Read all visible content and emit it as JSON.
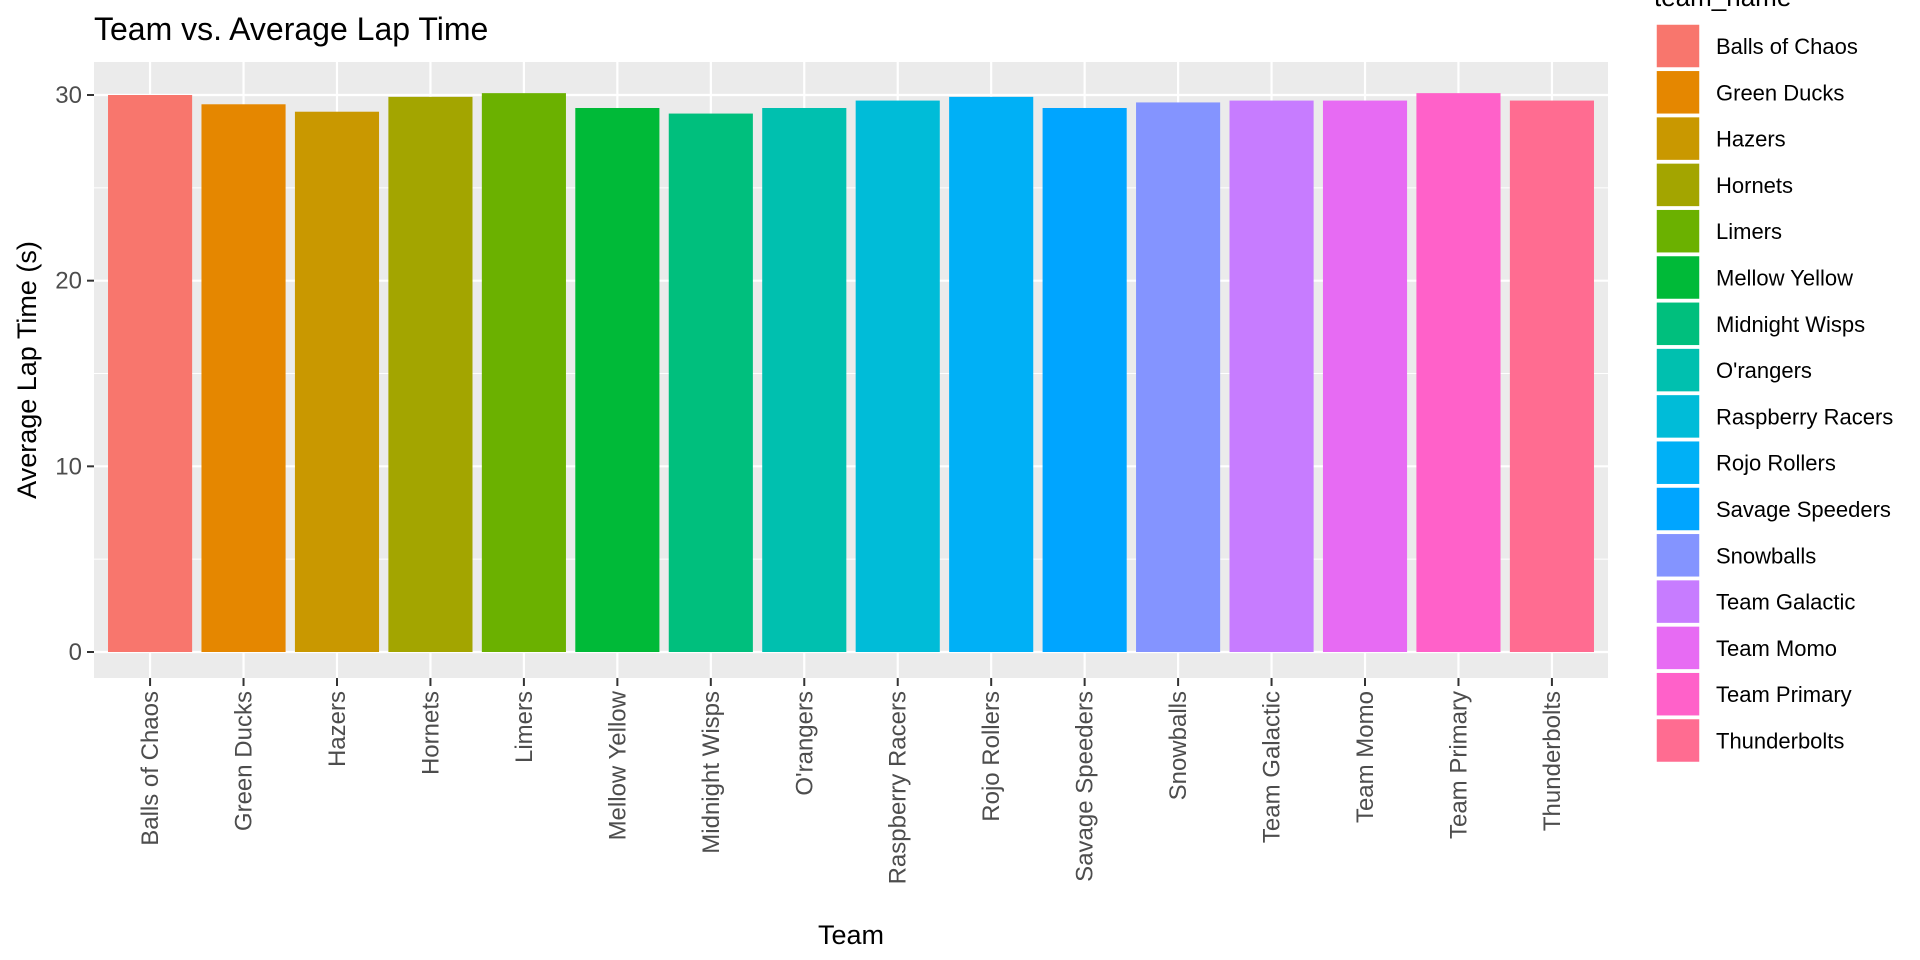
{
  "chart_data": {
    "type": "bar",
    "title": "Team vs. Average Lap Time",
    "xlabel": "Team",
    "ylabel": "Average Lap Time (s)",
    "ylim": [
      0,
      31.5
    ],
    "yticks": [
      0,
      10,
      20,
      30
    ],
    "grid": true,
    "legend": {
      "title": "team_name",
      "placement": "right"
    },
    "categories": [
      "Balls of Chaos",
      "Green Ducks",
      "Hazers",
      "Hornets",
      "Limers",
      "Mellow Yellow",
      "Midnight Wisps",
      "O'rangers",
      "Raspberry Racers",
      "Rojo Rollers",
      "Savage Speeders",
      "Snowballs",
      "Team Galactic",
      "Team Momo",
      "Team Primary",
      "Thunderbolts"
    ],
    "values": [
      30.0,
      29.5,
      29.1,
      29.9,
      30.1,
      29.3,
      29.0,
      29.3,
      29.7,
      29.9,
      29.3,
      29.6,
      29.7,
      29.7,
      30.1,
      29.7
    ],
    "colors": [
      "#F8766D",
      "#E58700",
      "#C99800",
      "#A3A500",
      "#6BB100",
      "#00BA38",
      "#00BF7D",
      "#00C0AF",
      "#00BCD8",
      "#00B0F6",
      "#00A5FF",
      "#8494FF",
      "#C77CFF",
      "#E76BF3",
      "#FF61C9",
      "#FF6C91"
    ]
  }
}
